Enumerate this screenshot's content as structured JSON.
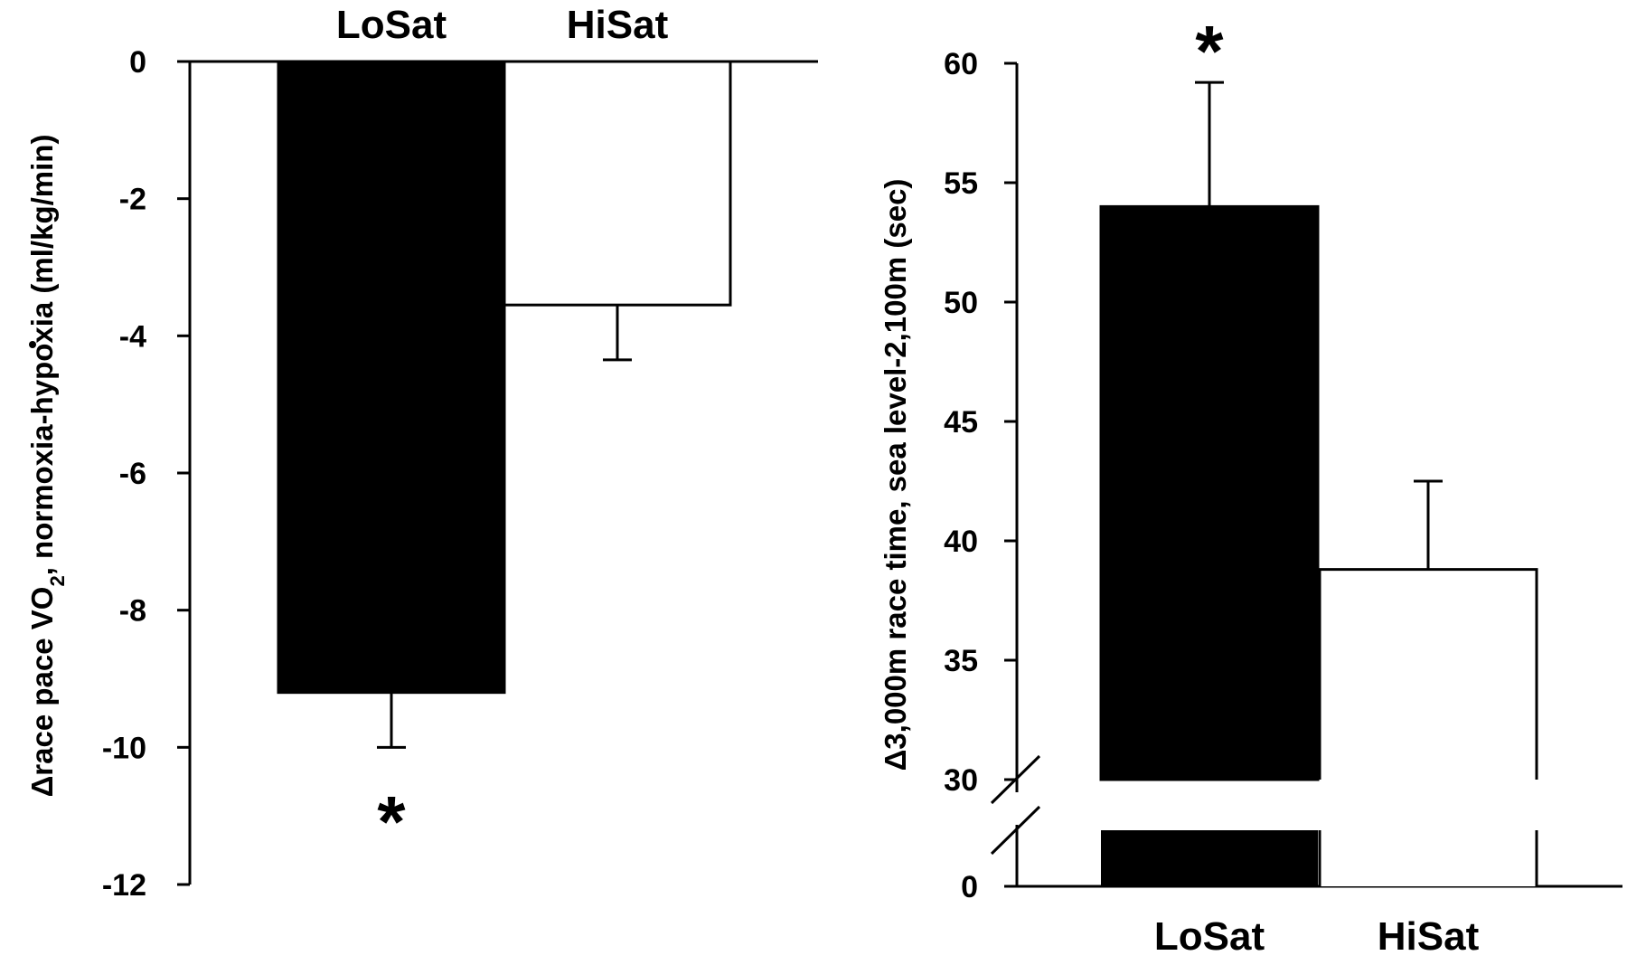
{
  "chart_data": [
    {
      "type": "bar",
      "categories": [
        "LoSat",
        "HiSat"
      ],
      "values": [
        -9.2,
        -3.55
      ],
      "errors": [
        0.8,
        0.8
      ],
      "colors": [
        "#000000",
        "#ffffff"
      ],
      "ylabel_parts": [
        "Δrace pace ",
        "V",
        "O",
        "2",
        ", normoxia-hypoxia (ml/kg/min)"
      ],
      "ylim": [
        -12,
        0
      ],
      "yticks": [
        "0",
        "-2",
        "-4",
        "-6",
        "-8",
        "-10",
        "-12"
      ],
      "ytick_values": [
        0,
        -2,
        -4,
        -6,
        -8,
        -10,
        -12
      ],
      "category_labels_position": "top",
      "significance_marker": "*",
      "significant_category": "LoSat"
    },
    {
      "type": "bar",
      "categories": [
        "LoSat",
        "HiSat"
      ],
      "values": [
        54,
        38.8
      ],
      "errors": [
        5.2,
        3.7
      ],
      "colors": [
        "#000000",
        "#ffffff"
      ],
      "ylabel": "Δ3,000m race time, sea level-2,100m (sec)",
      "ylim": [
        0,
        60
      ],
      "axis_break": [
        0,
        30
      ],
      "yticks": [
        "60",
        "55",
        "50",
        "45",
        "40",
        "35",
        "30",
        "0"
      ],
      "ytick_values": [
        60,
        55,
        50,
        45,
        40,
        35,
        30,
        0
      ],
      "category_labels_position": "bottom",
      "significance_marker": "*",
      "significant_category": "LoSat"
    }
  ]
}
